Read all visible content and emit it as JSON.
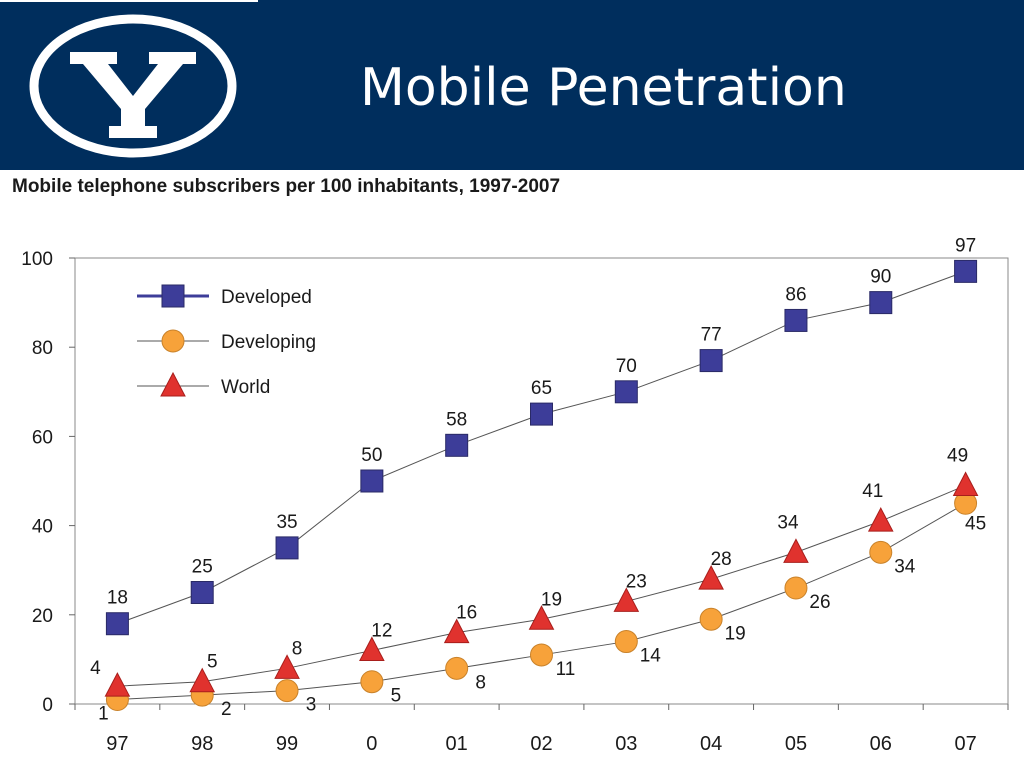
{
  "slide": {
    "title": "Mobile Penetration",
    "logo_icon": "byu-y-logo-icon",
    "header_color": "#002e5d"
  },
  "chart_data": {
    "type": "line",
    "title": "Mobile telephone subscribers per 100 inhabitants, 1997-2007",
    "xlabel": "",
    "ylabel": "",
    "categories": [
      "97",
      "98",
      "99",
      "0",
      "01",
      "02",
      "03",
      "04",
      "05",
      "06",
      "07"
    ],
    "ylim": [
      0,
      100
    ],
    "yticks": [
      0,
      20,
      40,
      60,
      80,
      100
    ],
    "grid": false,
    "legend_position": "top-left",
    "series": [
      {
        "name": "Developed",
        "marker": "square",
        "color": "#3d3d99",
        "values": [
          18,
          25,
          35,
          50,
          58,
          65,
          70,
          77,
          86,
          90,
          97
        ],
        "labels": [
          "18",
          "25",
          "35",
          "50",
          "58",
          "65",
          "70",
          "77",
          "86",
          "90",
          "97"
        ]
      },
      {
        "name": "Developing",
        "marker": "circle",
        "color": "#f7a23a",
        "values": [
          1,
          2,
          3,
          5,
          8,
          11,
          14,
          19,
          26,
          34,
          45
        ],
        "labels": [
          "1",
          "2",
          "3",
          "5",
          "8",
          "11",
          "14",
          "19",
          "26",
          "34",
          "45"
        ]
      },
      {
        "name": "World",
        "marker": "triangle",
        "color": "#e0322e",
        "values": [
          4,
          5,
          8,
          12,
          16,
          19,
          23,
          28,
          34,
          41,
          49
        ],
        "labels": [
          "4",
          "5",
          "8",
          "12",
          "16",
          "19",
          "23",
          "28",
          "34",
          "41",
          "49"
        ]
      }
    ]
  }
}
